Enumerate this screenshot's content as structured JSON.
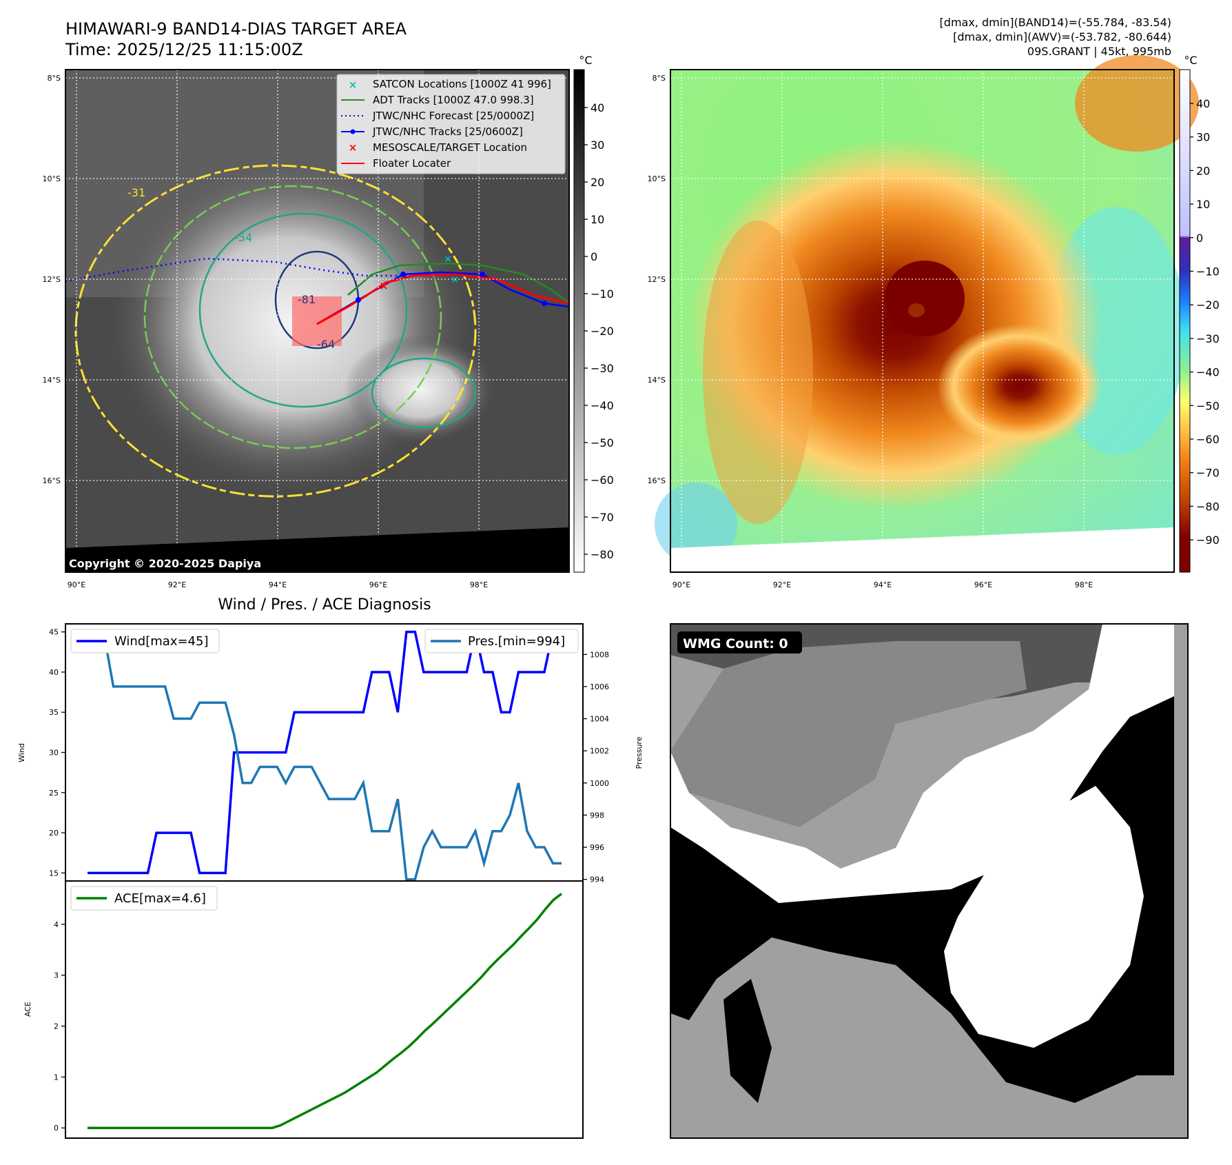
{
  "header": {
    "title_line1": "HIMAWARI-9 BAND14-DIAS TARGET AREA",
    "title_line2": "Time: 2025/12/25 11:15:00Z",
    "info_line1": "[dmax, dmin](BAND14)=(-55.784, -83.54)",
    "info_line2": "[dmax, dmin](AWV)=(-53.782, -80.644)",
    "info_line3": "09S.GRANT | 45kt, 995mb"
  },
  "colors": {
    "wind": "#0000ff",
    "pressure": "#1f77b4",
    "ace": "#008000",
    "adt": "#228b22",
    "satcon": "#00bfbf",
    "forecast": "#0000ff",
    "floater": "#ff0000",
    "contour_yellow": "#ffe135",
    "contour_green": "#77cc55",
    "contour_teal": "#20a58a"
  },
  "map_ir": {
    "lat_labels": [
      "8°S",
      "10°S",
      "12°S",
      "14°S",
      "16°S"
    ],
    "lon_labels": [
      "90°E",
      "92°E",
      "94°E",
      "96°E",
      "98°E"
    ],
    "colorbar_unit": "°C",
    "colorbar_ticks": [
      "40",
      "30",
      "20",
      "10",
      "0",
      "−10",
      "−20",
      "−30",
      "−40",
      "−50",
      "−60",
      "−70",
      "−80"
    ],
    "contour_labels": [
      "-31",
      "-54",
      "-64",
      "-81"
    ],
    "copyright": "Copyright © 2020-2025 Dapiya",
    "legend": [
      {
        "label": "SATCON Locations [1000Z 41 996]",
        "symbol": "x-cyan"
      },
      {
        "label": "ADT Tracks [1000Z 47.0 998.3]",
        "symbol": "line-green"
      },
      {
        "label": "JTWC/NHC Forecast [25/0000Z]",
        "symbol": "dotted-blue"
      },
      {
        "label": "JTWC/NHC Tracks [25/0600Z]",
        "symbol": "line-dot-blue"
      },
      {
        "label": "MESOSCALE/TARGET Location",
        "symbol": "x-red"
      },
      {
        "label": "Floater Locater",
        "symbol": "line-red"
      }
    ]
  },
  "map_awv": {
    "lat_labels": [
      "8°S",
      "10°S",
      "12°S",
      "14°S",
      "16°S"
    ],
    "lon_labels": [
      "90°E",
      "92°E",
      "94°E",
      "96°E",
      "98°E"
    ],
    "colorbar_unit": "°C",
    "colorbar_ticks": [
      "40",
      "30",
      "20",
      "10",
      "0",
      "−10",
      "−20",
      "−30",
      "−40",
      "−50",
      "−60",
      "−70",
      "−80",
      "−90"
    ]
  },
  "chart_data": [
    {
      "type": "line",
      "title": "Wind / Pres. / ACE Diagnosis",
      "ylabel": "Wind",
      "y2label": "Pressure",
      "ylim": [
        14.0,
        46.0
      ],
      "y2lim": [
        993.9,
        1009.9
      ],
      "yticks": [
        "15",
        "20",
        "25",
        "30",
        "35",
        "40",
        "45"
      ],
      "y2ticks": [
        "994",
        "996",
        "998",
        "1000",
        "1002",
        "1004",
        "1006",
        "1008"
      ],
      "series": [
        {
          "name": "Wind[max=45]",
          "axis": "left",
          "values": [
            15,
            15,
            15,
            15,
            15,
            15,
            15,
            15,
            20,
            20,
            20,
            20,
            20,
            15,
            15,
            15,
            15,
            30,
            30,
            30,
            30,
            30,
            30,
            30,
            35,
            35,
            35,
            35,
            35,
            35,
            35,
            35,
            35,
            40,
            40,
            40,
            35,
            45,
            45,
            40,
            40,
            40,
            40,
            40,
            40,
            45,
            40,
            40,
            35,
            35,
            40,
            40,
            40,
            40,
            45,
            45
          ]
        },
        {
          "name": "Pres.[min=994]",
          "axis": "right",
          "values": [
            1009,
            1009,
            1009,
            1006,
            1006,
            1006,
            1006,
            1006,
            1006,
            1006,
            1004,
            1004,
            1004,
            1005,
            1005,
            1005,
            1005,
            1003,
            1000,
            1000,
            1001,
            1001,
            1001,
            1000,
            1001,
            1001,
            1001,
            1000,
            999,
            999,
            999,
            999,
            1000,
            997,
            997,
            997,
            999,
            994,
            994,
            996,
            997,
            996,
            996,
            996,
            996,
            997,
            995,
            997,
            997,
            998,
            1000,
            997,
            996,
            996,
            995,
            995
          ]
        }
      ]
    },
    {
      "type": "line",
      "ylabel": "ACE",
      "ylim": [
        -0.2,
        4.85
      ],
      "yticks": [
        "0",
        "1",
        "2",
        "3",
        "4"
      ],
      "series": [
        {
          "name": "ACE[max=4.6]",
          "values": [
            0,
            0,
            0,
            0,
            0,
            0,
            0,
            0,
            0,
            0,
            0,
            0,
            0,
            0,
            0,
            0,
            0,
            0,
            0,
            0,
            0,
            0,
            0,
            0,
            0.05,
            0.13,
            0.21,
            0.29,
            0.37,
            0.45,
            0.53,
            0.61,
            0.69,
            0.79,
            0.89,
            0.99,
            1.09,
            1.22,
            1.35,
            1.47,
            1.6,
            1.75,
            1.91,
            2.05,
            2.2,
            2.35,
            2.5,
            2.65,
            2.8,
            2.96,
            3.14,
            3.3,
            3.45,
            3.6,
            3.77,
            3.93,
            4.1,
            4.3,
            4.48,
            4.6
          ]
        }
      ]
    }
  ],
  "wmg_panel": {
    "label": "WMG Count: 0"
  }
}
